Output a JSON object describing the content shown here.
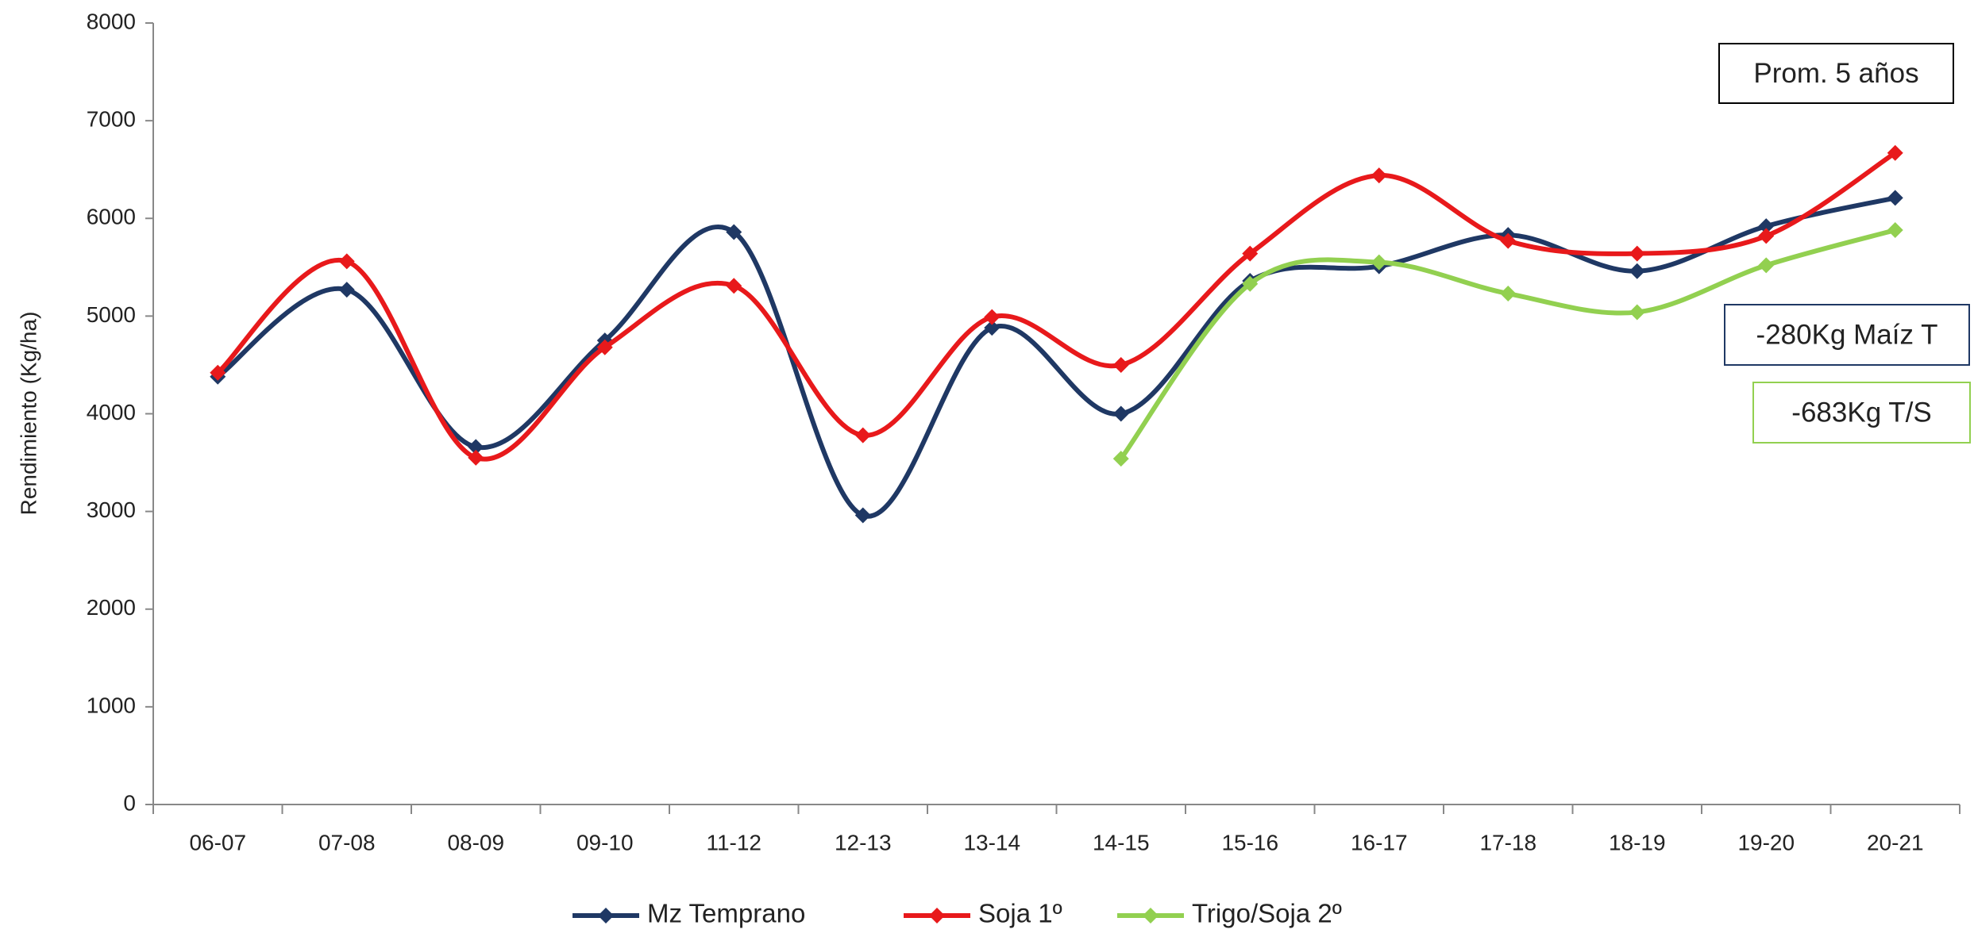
{
  "chart_data": {
    "type": "line",
    "y_label": "Rendimiento (Kg/ha)",
    "categories": [
      "06-07",
      "07-08",
      "08-09",
      "09-10",
      "11-12",
      "12-13",
      "13-14",
      "14-15",
      "15-16",
      "16-17",
      "17-18",
      "18-19",
      "19-20",
      "20-21"
    ],
    "series": [
      {
        "name": "Mz Temprano",
        "color": "#1f3864",
        "values": [
          4380,
          5270,
          3660,
          4750,
          5860,
          2960,
          4880,
          4000,
          5360,
          5510,
          5830,
          5460,
          5920,
          6210
        ]
      },
      {
        "name": "Soja 1º",
        "color": "#e8191b",
        "values": [
          4420,
          5560,
          3550,
          4680,
          5310,
          3780,
          4990,
          4500,
          5640,
          6440,
          5770,
          5640,
          5820,
          6670
        ]
      },
      {
        "name": "Trigo/Soja 2º",
        "color": "#92d050",
        "values": [
          null,
          null,
          null,
          null,
          null,
          null,
          null,
          3540,
          5330,
          5550,
          5230,
          5040,
          5520,
          5880
        ]
      }
    ],
    "ylim": [
      0,
      8000
    ],
    "yticks": [
      0,
      1000,
      2000,
      3000,
      4000,
      5000,
      6000,
      7000,
      8000
    ],
    "smooth": true,
    "legend": "bottom",
    "annotations": [
      {
        "text": "Prom. 5 años",
        "border_color": "#000000"
      },
      {
        "text": "-280Kg Maíz T",
        "border_color": "#1f3864"
      },
      {
        "text": "-683Kg T/S",
        "border_color": "#92d050"
      }
    ]
  }
}
